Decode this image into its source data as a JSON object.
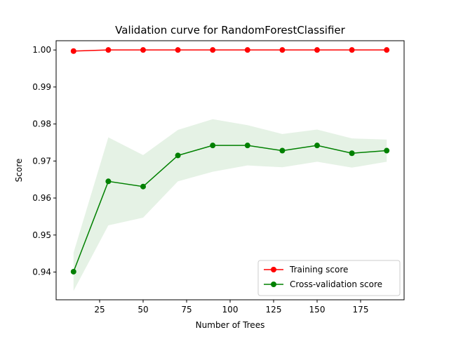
{
  "chart_data": {
    "type": "line",
    "title": "Validation curve for RandomForestClassifier",
    "xlabel": "Number of Trees",
    "ylabel": "Score",
    "x": [
      10,
      30,
      50,
      70,
      90,
      110,
      130,
      150,
      170,
      190
    ],
    "xlim": [
      0,
      200
    ],
    "ylim": [
      0.9325,
      1.0025
    ],
    "xticks": [
      25,
      50,
      75,
      100,
      125,
      150,
      175
    ],
    "yticks": [
      0.94,
      0.95,
      0.96,
      0.97,
      0.98,
      0.99,
      1.0
    ],
    "ytick_labels": [
      "0.94",
      "0.95",
      "0.96",
      "0.97",
      "0.98",
      "0.99",
      "1.00"
    ],
    "grid": false,
    "legend_position": "lower-right",
    "series": [
      {
        "name": "Training score",
        "color": "#ff0000",
        "marker": "circle",
        "values": [
          0.9997,
          1.0,
          1.0,
          1.0,
          1.0,
          1.0,
          1.0,
          1.0,
          1.0,
          1.0
        ]
      },
      {
        "name": "Cross-validation score",
        "color": "#008000",
        "marker": "circle",
        "values": [
          0.9401,
          0.9645,
          0.9631,
          0.9715,
          0.9742,
          0.9742,
          0.9728,
          0.9742,
          0.9721,
          0.9728
        ],
        "band_lower": [
          0.9349,
          0.9526,
          0.9547,
          0.9645,
          0.9671,
          0.9688,
          0.9683,
          0.9698,
          0.9682,
          0.9698
        ],
        "band_upper": [
          0.9452,
          0.9764,
          0.9716,
          0.9784,
          0.9813,
          0.9797,
          0.9773,
          0.9785,
          0.9761,
          0.9758
        ],
        "band_color": "#008000",
        "band_opacity": 0.1
      }
    ]
  }
}
